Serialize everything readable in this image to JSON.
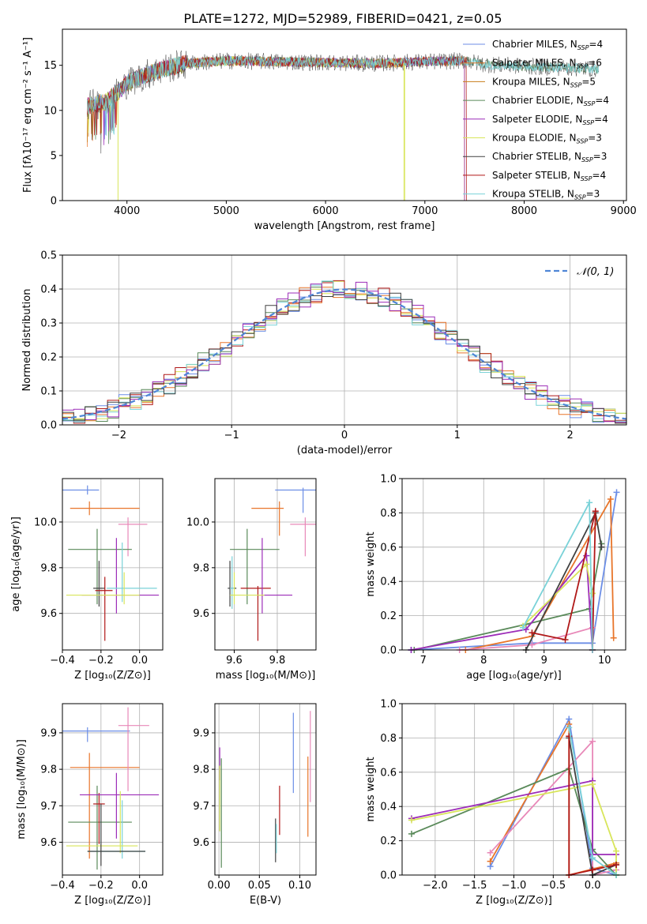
{
  "figure": {
    "title": "PLATE=1272, MJD=52989, FIBERID=0421, z=0.05"
  },
  "colors": {
    "chabrier_miles": "#6c8ee6",
    "salpeter_miles": "#e8752a",
    "kroupa_miles": "#e8752a",
    "chabrier_elodie": "#5a8a5a",
    "salpeter_elodie": "#9c2cb8",
    "kroupa_elodie": "#d8e55a",
    "chabrier_stelib": "#606060",
    "salpeter_stelib": "#b01818",
    "kroupa_stelib": "#7ad2d8",
    "pink": "#e888b8",
    "gauss": "#4f86d6",
    "grid": "#b0b0b0"
  },
  "legend_spectrum": [
    {
      "text": "Chabrier MILES, N",
      "sub": "SSP",
      "tail": "=4",
      "color": "#6c8ee6"
    },
    {
      "text": "Salpeter MILES, N",
      "sub": "SSP",
      "tail": "=6",
      "color": "#e8752a"
    },
    {
      "text": "Kroupa MILES, N",
      "sub": "SSP",
      "tail": "=5",
      "color": "#c87d1a"
    },
    {
      "text": "Chabrier ELODIE, N",
      "sub": "SSP",
      "tail": "=4",
      "color": "#5a8a5a"
    },
    {
      "text": "Salpeter ELODIE, N",
      "sub": "SSP",
      "tail": "=4",
      "color": "#9c2cb8"
    },
    {
      "text": "Kroupa ELODIE, N",
      "sub": "SSP",
      "tail": "=3",
      "color": "#d8e55a"
    },
    {
      "text": "Chabrier STELIB, N",
      "sub": "SSP",
      "tail": "=3",
      "color": "#404040"
    },
    {
      "text": "Salpeter STELIB, N",
      "sub": "SSP",
      "tail": "=4",
      "color": "#b01818"
    },
    {
      "text": "Kroupa STELIB, N",
      "sub": "SSP",
      "tail": "=3",
      "color": "#7ad2d8"
    }
  ],
  "legend_hist": {
    "label": "𝒩(0, 1)"
  },
  "chart_data": [
    {
      "id": "spectrum",
      "type": "line",
      "xlabel": "wavelength [Angstrom, rest frame]",
      "ylabel": "Flux [fλ10⁻¹⁷ erg cm⁻² s⁻¹ A⁻¹]",
      "xlim": [
        3350,
        9030
      ],
      "ylim": [
        0,
        19
      ],
      "xticks": [
        4000,
        5000,
        6000,
        7000,
        8000,
        9000
      ],
      "yticks": [
        0,
        5,
        10,
        15
      ],
      "continuum": [
        [
          3600,
          10.5
        ],
        [
          3800,
          11.0
        ],
        [
          4000,
          13.0
        ],
        [
          4200,
          14.0
        ],
        [
          4400,
          14.7
        ],
        [
          4600,
          15.2
        ],
        [
          5000,
          15.5
        ],
        [
          5500,
          15.4
        ],
        [
          6000,
          15.3
        ],
        [
          6500,
          15.2
        ],
        [
          7000,
          15.4
        ],
        [
          7400,
          15.5
        ],
        [
          7600,
          15.1
        ],
        [
          8000,
          14.9
        ],
        [
          8500,
          14.7
        ],
        [
          8750,
          14.6
        ]
      ]
    },
    {
      "id": "residual_hist",
      "type": "bar",
      "xlabel": "(data-model)/error",
      "ylabel": "Normed distribution",
      "xlim": [
        -2.5,
        2.5
      ],
      "ylim": [
        0,
        0.5
      ],
      "xticks": [
        -2,
        -1,
        0,
        1,
        2
      ],
      "yticks": [
        0.0,
        0.1,
        0.2,
        0.3,
        0.4,
        0.5
      ],
      "bin_width": 0.1,
      "series": [
        {
          "name": "Chabrier MILES",
          "color": "#6c8ee6"
        },
        {
          "name": "Salpeter MILES",
          "color": "#e8752a"
        },
        {
          "name": "Chabrier ELODIE",
          "color": "#5a8a5a"
        },
        {
          "name": "Kroupa ELODIE",
          "color": "#d8e55a"
        },
        {
          "name": "Salpeter STELIB",
          "color": "#b01818"
        },
        {
          "name": "Kroupa STELIB",
          "color": "#7ad2d8"
        },
        {
          "name": "Salpeter ELODIE",
          "color": "#9c2cb8"
        },
        {
          "name": "Chabrier STELIB",
          "color": "#404040"
        }
      ]
    },
    {
      "id": "age_vs_Z",
      "type": "scatter",
      "xlabel": "Z [log₁₀(Z/Z⊙)]",
      "ylabel": "age  [log₁₀(age/yr)]",
      "xlim": [
        -0.4,
        0.12
      ],
      "ylim": [
        9.44,
        10.19
      ],
      "xticks": [
        -0.4,
        -0.2,
        0.0
      ],
      "yticks": [
        9.6,
        9.8,
        10.0
      ],
      "points": [
        {
          "x": -0.27,
          "y": 10.14,
          "xerr": [
            0.27,
            0.06
          ],
          "yerr": [
            0.02,
            0.02
          ],
          "color": "#6c8ee6"
        },
        {
          "x": -0.26,
          "y": 10.06,
          "xerr": [
            0.1,
            0.26
          ],
          "yerr": [
            0.03,
            0.03
          ],
          "color": "#e8752a"
        },
        {
          "x": -0.06,
          "y": 9.99,
          "xerr": [
            0.05,
            0.1
          ],
          "yerr": [
            0.14,
            0.03
          ],
          "color": "#e888b8"
        },
        {
          "x": -0.22,
          "y": 9.88,
          "xerr": [
            0.15,
            0.18
          ],
          "yerr": [
            0.24,
            0.09
          ],
          "color": "#5a8a5a"
        },
        {
          "x": -0.21,
          "y": 9.71,
          "xerr": [
            0.03,
            0.03
          ],
          "yerr": [
            0.08,
            0.12
          ],
          "color": "#404040"
        },
        {
          "x": -0.18,
          "y": 9.7,
          "xerr": [
            0.05,
            0.04
          ],
          "yerr": [
            0.22,
            0.06
          ],
          "color": "#b01818"
        },
        {
          "x": -0.12,
          "y": 9.68,
          "xerr": [
            0.18,
            0.22
          ],
          "yerr": [
            0.08,
            0.25
          ],
          "color": "#9c2cb8"
        },
        {
          "x": -0.09,
          "y": 9.71,
          "xerr": [
            0.08,
            0.18
          ],
          "yerr": [
            0.06,
            0.2
          ],
          "color": "#7ad2d8"
        },
        {
          "x": -0.08,
          "y": 9.68,
          "xerr": [
            0.3,
            0.08
          ],
          "yerr": [
            0.04,
            0.1
          ],
          "color": "#d8e55a"
        }
      ]
    },
    {
      "id": "age_vs_mass",
      "type": "scatter",
      "xlabel": "mass [log₁₀(M/M⊙)]",
      "ylabel": "",
      "xlim": [
        9.51,
        9.98
      ],
      "ylim": [
        9.44,
        10.19
      ],
      "xticks": [
        9.6,
        9.8
      ],
      "yticks": [
        9.6,
        9.8,
        10.0
      ],
      "points": [
        {
          "x": 9.92,
          "y": 10.14,
          "xerr": [
            0.13,
            0.07
          ],
          "yerr": [
            0.1,
            0.01
          ],
          "color": "#6c8ee6"
        },
        {
          "x": 9.81,
          "y": 10.06,
          "xerr": [
            0.13,
            0.02
          ],
          "yerr": [
            0.12,
            0.03
          ],
          "color": "#e8752a"
        },
        {
          "x": 9.93,
          "y": 9.99,
          "xerr": [
            0.07,
            0.05
          ],
          "yerr": [
            0.14,
            0.03
          ],
          "color": "#e888b8"
        },
        {
          "x": 9.66,
          "y": 9.88,
          "xerr": [
            0.08,
            0.15
          ],
          "yerr": [
            0.24,
            0.09
          ],
          "color": "#5a8a5a"
        },
        {
          "x": 9.58,
          "y": 9.71,
          "xerr": [
            0.01,
            0.03
          ],
          "yerr": [
            0.08,
            0.12
          ],
          "color": "#404040"
        },
        {
          "x": 9.71,
          "y": 9.71,
          "xerr": [
            0.08,
            0.06
          ],
          "yerr": [
            0.23,
            0.01
          ],
          "color": "#b01818"
        },
        {
          "x": 9.73,
          "y": 9.68,
          "xerr": [
            0.02,
            0.14
          ],
          "yerr": [
            0.08,
            0.25
          ],
          "color": "#9c2cb8"
        },
        {
          "x": 9.59,
          "y": 9.71,
          "xerr": [
            0.01,
            0.01
          ],
          "yerr": [
            0.09,
            0.14
          ],
          "color": "#7ad2d8"
        },
        {
          "x": 9.6,
          "y": 9.68,
          "xerr": [
            0.02,
            0.14
          ],
          "yerr": [
            0.04,
            0.1
          ],
          "color": "#d8e55a"
        }
      ]
    },
    {
      "id": "massweight_vs_age",
      "type": "line",
      "xlabel": "age  [log₁₀(age/yr)]",
      "ylabel": "mass weight",
      "xlim": [
        6.65,
        10.35
      ],
      "ylim": [
        0,
        1.0
      ],
      "xticks": [
        7,
        8,
        9,
        10
      ],
      "yticks": [
        0.0,
        0.2,
        0.4,
        0.6,
        0.8,
        1.0
      ],
      "series": [
        {
          "color": "#6c8ee6",
          "x": [
            6.8,
            8.8,
            9.8,
            10.2
          ],
          "y": [
            0.0,
            0.04,
            0.04,
            0.92
          ]
        },
        {
          "color": "#e8752a",
          "x": [
            7.7,
            8.8,
            10.1,
            10.15
          ],
          "y": [
            0.0,
            0.08,
            0.88,
            0.07
          ]
        },
        {
          "color": "#e888b8",
          "x": [
            7.6,
            8.8,
            9.8,
            9.8
          ],
          "y": [
            0.0,
            0.03,
            0.13,
            0.0
          ]
        },
        {
          "color": "#5a8a5a",
          "x": [
            6.85,
            8.7,
            9.75,
            9.95
          ],
          "y": [
            0.0,
            0.15,
            0.24,
            0.62
          ]
        },
        {
          "color": "#9c2cb8",
          "x": [
            6.8,
            8.7,
            9.7,
            9.8
          ],
          "y": [
            0.0,
            0.12,
            0.55,
            0.0
          ]
        },
        {
          "color": "#d8e55a",
          "x": [
            8.65,
            9.7,
            9.8,
            9.8
          ],
          "y": [
            0.14,
            0.5,
            0.33,
            0.33
          ]
        },
        {
          "color": "#404040",
          "x": [
            8.7,
            9.85,
            9.95
          ],
          "y": [
            0.0,
            0.8,
            0.6
          ]
        },
        {
          "color": "#b01818",
          "x": [
            8.8,
            9.35,
            9.85,
            9.8
          ],
          "y": [
            0.1,
            0.06,
            0.81,
            0.0
          ]
        },
        {
          "color": "#7ad2d8",
          "x": [
            8.65,
            9.75,
            9.8
          ],
          "y": [
            0.13,
            0.86,
            0.0
          ]
        }
      ]
    },
    {
      "id": "mass_vs_Z",
      "type": "scatter",
      "xlabel": "Z [log₁₀(Z/Z⊙)]",
      "ylabel": "mass [log₁₀(M/M⊙)]",
      "xlim": [
        -0.4,
        0.12
      ],
      "ylim": [
        9.51,
        9.98
      ],
      "xticks": [
        -0.4,
        -0.2,
        0.0
      ],
      "yticks": [
        9.6,
        9.7,
        9.8,
        9.9
      ],
      "points": [
        {
          "x": -0.27,
          "y": 9.905,
          "xerr": [
            0.27,
            0.22
          ],
          "yerr": [
            0.03,
            0.01
          ],
          "color": "#6c8ee6"
        },
        {
          "x": -0.26,
          "y": 9.805,
          "xerr": [
            0.1,
            0.26
          ],
          "yerr": [
            0.25,
            0.04
          ],
          "color": "#e8752a"
        },
        {
          "x": -0.06,
          "y": 9.92,
          "xerr": [
            0.05,
            0.11
          ],
          "yerr": [
            0.18,
            0.05
          ],
          "color": "#e888b8"
        },
        {
          "x": -0.22,
          "y": 9.655,
          "xerr": [
            0.15,
            0.18
          ],
          "yerr": [
            0.13,
            0.1
          ],
          "color": "#5a8a5a"
        },
        {
          "x": -0.21,
          "y": 9.705,
          "xerr": [
            0.03,
            0.03
          ],
          "yerr": [
            0.11,
            0.03
          ],
          "color": "#b01818"
        },
        {
          "x": -0.12,
          "y": 9.73,
          "xerr": [
            0.19,
            0.22
          ],
          "yerr": [
            0.12,
            0.06
          ],
          "color": "#9c2cb8"
        },
        {
          "x": -0.09,
          "y": 9.575,
          "xerr": [
            0.18,
            0.12
          ],
          "yerr": [
            0.02,
            0.14
          ],
          "color": "#7ad2d8"
        },
        {
          "x": -0.1,
          "y": 9.59,
          "xerr": [
            0.28,
            0.09
          ],
          "yerr": [
            0.02,
            0.15
          ],
          "color": "#d8e55a"
        },
        {
          "x": -0.2,
          "y": 9.575,
          "xerr": [
            0.07,
            0.23
          ],
          "yerr": [
            0.04,
            0.13
          ],
          "color": "#404040"
        }
      ]
    },
    {
      "id": "mass_vs_ebv",
      "type": "scatter",
      "xlabel": "E(B-V)",
      "ylabel": "",
      "xlim": [
        -0.005,
        0.12
      ],
      "ylim": [
        9.51,
        9.98
      ],
      "xticks": [
        0.0,
        0.05,
        0.1
      ],
      "yticks": [
        9.6,
        9.7,
        9.8,
        9.9
      ],
      "points": [
        {
          "x": 0.092,
          "y": 9.905,
          "xerr": [
            0,
            0
          ],
          "yerr": [
            0.17,
            0.05
          ],
          "color": "#6c8ee6"
        },
        {
          "x": 0.11,
          "y": 9.725,
          "xerr": [
            0,
            0
          ],
          "yerr": [
            0.11,
            0.11
          ],
          "color": "#e8752a"
        },
        {
          "x": 0.113,
          "y": 9.88,
          "xerr": [
            0,
            0
          ],
          "yerr": [
            0.17,
            0.08
          ],
          "color": "#e888b8"
        },
        {
          "x": 0.003,
          "y": 9.69,
          "xerr": [
            0,
            0
          ],
          "yerr": [
            0.16,
            0.14
          ],
          "color": "#5a8a5a"
        },
        {
          "x": 0.001,
          "y": 9.82,
          "xerr": [
            0,
            0
          ],
          "yerr": [
            0.05,
            0.04
          ],
          "color": "#9c2cb8"
        },
        {
          "x": 0.001,
          "y": 9.69,
          "xerr": [
            0,
            0
          ],
          "yerr": [
            0.06,
            0.12
          ],
          "color": "#d8e55a"
        },
        {
          "x": 0.07,
          "y": 9.6,
          "xerr": [
            0,
            0
          ],
          "yerr": [
            0.055,
            0.065
          ],
          "color": "#404040"
        },
        {
          "x": 0.075,
          "y": 9.69,
          "xerr": [
            0,
            0
          ],
          "yerr": [
            0.07,
            0.065
          ],
          "color": "#b01818"
        },
        {
          "x": 0.071,
          "y": 9.61,
          "xerr": [
            0,
            0
          ],
          "yerr": [
            0.04,
            0.04
          ],
          "color": "#7ad2d8"
        }
      ]
    },
    {
      "id": "massweight_vs_Z",
      "type": "line",
      "xlabel": "Z [log₁₀(Z/Z⊙)]",
      "ylabel": "mass weight",
      "xlim": [
        -2.42,
        0.42
      ],
      "ylim": [
        0,
        1.0
      ],
      "xticks": [
        -2.0,
        -1.5,
        -1.0,
        -0.5,
        0.0
      ],
      "yticks": [
        0.0,
        0.2,
        0.4,
        0.6,
        0.8,
        1.0
      ],
      "series": [
        {
          "color": "#6c8ee6",
          "x": [
            -1.3,
            -0.3,
            0.0,
            0.3
          ],
          "y": [
            0.05,
            0.91,
            0.04,
            0.0
          ]
        },
        {
          "color": "#e8752a",
          "x": [
            -1.3,
            -0.3,
            -0.3,
            0.3
          ],
          "y": [
            0.08,
            0.88,
            0.0,
            0.07
          ]
        },
        {
          "color": "#e888b8",
          "x": [
            -1.3,
            0.0,
            0.0,
            0.3
          ],
          "y": [
            0.13,
            0.78,
            0.0,
            0.03
          ]
        },
        {
          "color": "#5a8a5a",
          "x": [
            -2.3,
            -0.3,
            0.0,
            0.3
          ],
          "y": [
            0.24,
            0.62,
            0.15,
            0.0
          ]
        },
        {
          "color": "#9c2cb8",
          "x": [
            -2.3,
            0.0,
            0.0,
            0.3
          ],
          "y": [
            0.33,
            0.55,
            0.12,
            0.12
          ]
        },
        {
          "color": "#d8e55a",
          "x": [
            -2.3,
            0.0,
            0.3,
            0.3
          ],
          "y": [
            0.32,
            0.53,
            0.14,
            0.0
          ]
        },
        {
          "color": "#404040",
          "x": [
            -0.3,
            0.0,
            0.3
          ],
          "y": [
            0.8,
            0.0,
            0.06
          ]
        },
        {
          "color": "#b01818",
          "x": [
            -0.3,
            -0.3,
            0.0,
            0.3
          ],
          "y": [
            0.81,
            0.0,
            0.03,
            0.06
          ]
        },
        {
          "color": "#7ad2d8",
          "x": [
            -0.3,
            0.0,
            0.3
          ],
          "y": [
            0.86,
            0.1,
            0.0
          ]
        }
      ]
    }
  ]
}
